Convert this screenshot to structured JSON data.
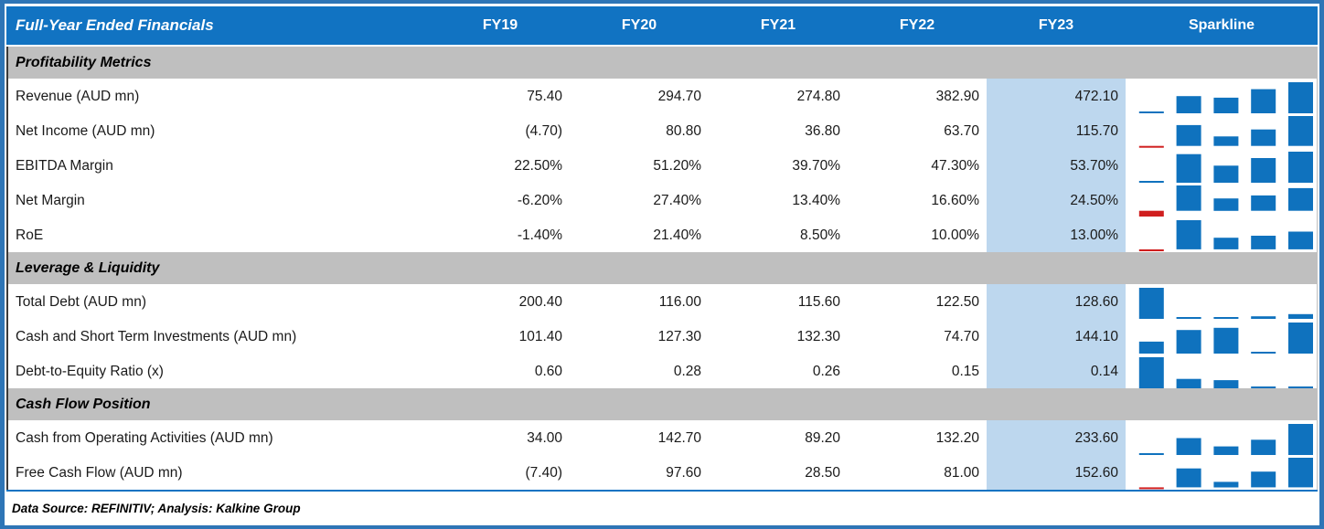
{
  "colors": {
    "header_blue": "#1173C2",
    "frame_blue": "#2E75B6",
    "band_gray": "#BFBFBF",
    "highlight_blue": "#BDD7EE",
    "bar_blue": "#0F72BE",
    "bar_negative_red": "#D01F1F"
  },
  "header": {
    "title": "Full-Year Ended Financials",
    "columns": [
      "FY19",
      "FY20",
      "FY21",
      "FY22",
      "FY23"
    ],
    "sparkline_label": "Sparkline"
  },
  "sections": [
    {
      "title": "Profitability Metrics",
      "rows": [
        {
          "label": "Revenue (AUD mn)",
          "values": [
            "75.40",
            "294.70",
            "274.80",
            "382.90",
            "472.10"
          ],
          "series": [
            75.4,
            294.7,
            274.8,
            382.9,
            472.1
          ]
        },
        {
          "label": "Net Income (AUD mn)",
          "values": [
            "(4.70)",
            "80.80",
            "36.80",
            "63.70",
            "115.70"
          ],
          "series": [
            -4.7,
            80.8,
            36.8,
            63.7,
            115.7
          ]
        },
        {
          "label": "EBITDA Margin",
          "values": [
            "22.50%",
            "51.20%",
            "39.70%",
            "47.30%",
            "53.70%"
          ],
          "series": [
            22.5,
            51.2,
            39.7,
            47.3,
            53.7
          ]
        },
        {
          "label": "Net Margin",
          "values": [
            "-6.20%",
            "27.40%",
            "13.40%",
            "16.60%",
            "24.50%"
          ],
          "series": [
            -6.2,
            27.4,
            13.4,
            16.6,
            24.5
          ]
        },
        {
          "label": "RoE",
          "values": [
            "-1.40%",
            "21.40%",
            "8.50%",
            "10.00%",
            "13.00%"
          ],
          "series": [
            -1.4,
            21.4,
            8.5,
            10.0,
            13.0
          ]
        }
      ]
    },
    {
      "title": "Leverage & Liquidity",
      "rows": [
        {
          "label": "Total Debt (AUD mn)",
          "values": [
            "200.40",
            "116.00",
            "115.60",
            "122.50",
            "128.60"
          ],
          "series": [
            200.4,
            116.0,
            115.6,
            122.5,
            128.6
          ]
        },
        {
          "label": "Cash and Short Term Investments (AUD mn)",
          "values": [
            "101.40",
            "127.30",
            "132.30",
            "74.70",
            "144.10"
          ],
          "series": [
            101.4,
            127.3,
            132.3,
            74.7,
            144.1
          ]
        },
        {
          "label": "Debt-to-Equity Ratio (x)",
          "values": [
            "0.60",
            "0.28",
            "0.26",
            "0.15",
            "0.14"
          ],
          "series": [
            0.6,
            0.28,
            0.26,
            0.15,
            0.14
          ]
        }
      ]
    },
    {
      "title": "Cash Flow Position",
      "rows": [
        {
          "label": "Cash from Operating Activities (AUD mn)",
          "values": [
            "34.00",
            "142.70",
            "89.20",
            "132.20",
            "233.60"
          ],
          "series": [
            34.0,
            142.7,
            89.2,
            132.2,
            233.6
          ]
        },
        {
          "label": "Free Cash Flow (AUD mn)",
          "values": [
            "(7.40)",
            "97.60",
            "28.50",
            "81.00",
            "152.60"
          ],
          "series": [
            -7.4,
            97.6,
            28.5,
            81.0,
            152.6
          ]
        }
      ]
    }
  ],
  "footer": {
    "text": "Data Source: REFINITIV; Analysis: Kalkine Group"
  }
}
